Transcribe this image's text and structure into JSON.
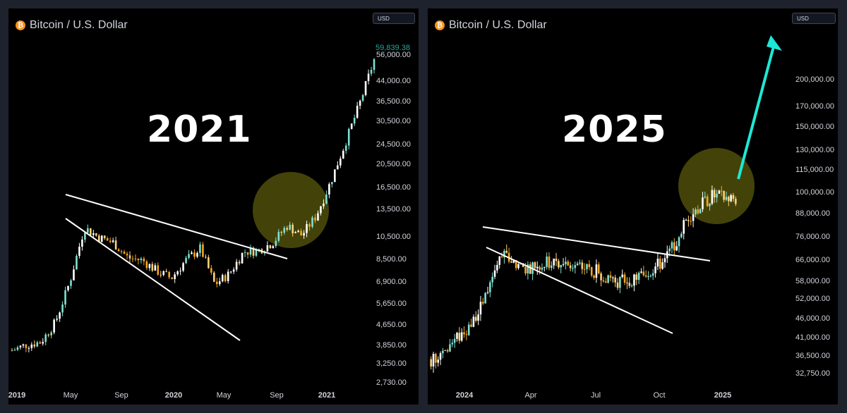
{
  "chart_data": [
    {
      "type": "candlestick",
      "title": "Bitcoin / U.S. Dollar",
      "currency": "USD",
      "annotation": "2021",
      "y_scale": "log",
      "ylim": [
        2730,
        66000
      ],
      "y_ticks": [
        "59,839.38",
        "56,000.00",
        "44,000.00",
        "36,500.00",
        "30,500.00",
        "24,500.00",
        "20,500.00",
        "16,500.00",
        "13,500.00",
        "10,500.00",
        "8,500.00",
        "6,900.00",
        "5,650.00",
        "4,650.00",
        "3,850.00",
        "3,250.00",
        "2,730.00"
      ],
      "x_ticks": [
        "2019",
        "May",
        "Sep",
        "2020",
        "May",
        "Sep",
        "2021"
      ],
      "last_price": "59,839.38",
      "x": [
        "2019-01",
        "2019-02",
        "2019-03",
        "2019-04",
        "2019-05",
        "2019-06",
        "2019-07",
        "2019-08",
        "2019-09",
        "2019-10",
        "2019-11",
        "2019-12",
        "2020-01",
        "2020-02",
        "2020-03",
        "2020-04",
        "2020-05",
        "2020-06",
        "2020-07",
        "2020-08",
        "2020-09",
        "2020-10",
        "2020-11",
        "2020-12",
        "2021-01",
        "2021-02"
      ],
      "y": [
        3700,
        3900,
        4000,
        4800,
        7000,
        11500,
        10500,
        10000,
        8700,
        8500,
        7700,
        7200,
        8500,
        9500,
        6800,
        7500,
        9200,
        9300,
        10000,
        11700,
        10700,
        12800,
        17500,
        25000,
        36000,
        54000
      ],
      "trend_lines": "Falling wedge (white lines)",
      "highlight": "Yellow circle around breakout (~Sep–Oct 2020)"
    },
    {
      "type": "candlestick",
      "title": "Bitcoin / U.S. Dollar",
      "currency": "USD",
      "annotation": "2025",
      "y_scale": "log",
      "ylim": [
        31000,
        260000
      ],
      "y_ticks": [
        "200,000.00",
        "170,000.00",
        "150,000.00",
        "130,000.00",
        "115,000.00",
        "100,000.00",
        "88,000.00",
        "76,000.00",
        "66,000.00",
        "58,000.00",
        "52,000.00",
        "46,000.00",
        "41,000.00",
        "36,500.00",
        "32,750.00"
      ],
      "x_ticks": [
        "2024",
        "Apr",
        "Jul",
        "Oct",
        "2025"
      ],
      "x": [
        "2023-12",
        "2024-01",
        "2024-02",
        "2024-03",
        "2024-04",
        "2024-05",
        "2024-06",
        "2024-07",
        "2024-08",
        "2024-09",
        "2024-10",
        "2024-11",
        "2024-12",
        "2025-01"
      ],
      "y": [
        36000,
        40000,
        47000,
        68000,
        63000,
        65000,
        64000,
        62000,
        58000,
        60000,
        66000,
        87000,
        98000,
        96000
      ],
      "trend_lines": "Falling wedge (white lines)",
      "highlight": "Yellow circle around current price area with cyan arrow pointing up"
    }
  ]
}
